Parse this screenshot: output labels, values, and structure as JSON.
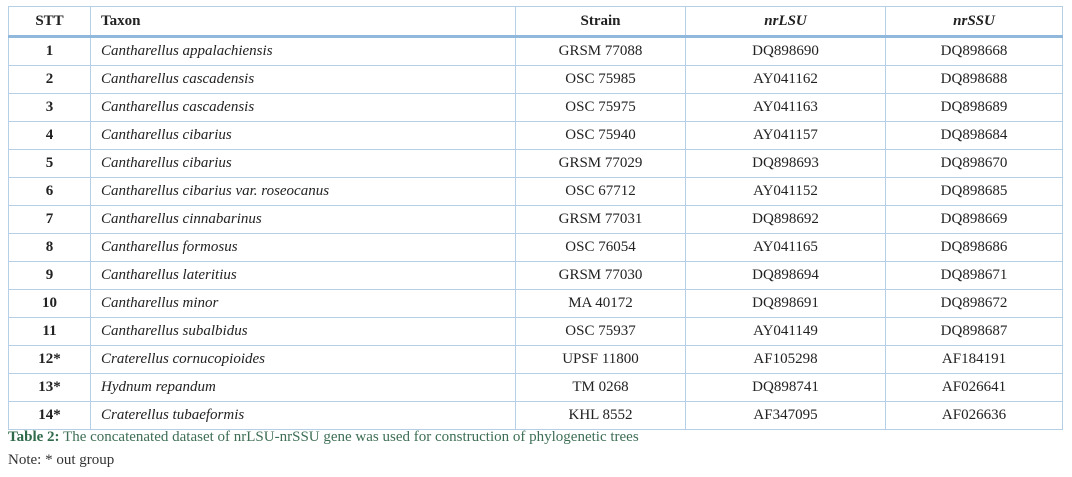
{
  "table": {
    "headers": [
      "STT",
      "Taxon",
      "Strain",
      "nrLSU",
      "nrSSU"
    ],
    "rows": [
      [
        "1",
        "Cantharellus appalachiensis",
        "GRSM 77088",
        "DQ898690",
        "DQ898668"
      ],
      [
        "2",
        "Cantharellus cascadensis",
        "OSC 75985",
        "AY041162",
        "DQ898688"
      ],
      [
        "3",
        "Cantharellus cascadensis",
        "OSC 75975",
        "AY041163",
        "DQ898689"
      ],
      [
        "4",
        "Cantharellus cibarius",
        "OSC 75940",
        "AY041157",
        "DQ898684"
      ],
      [
        "5",
        "Cantharellus cibarius",
        "GRSM 77029",
        "DQ898693",
        "DQ898670"
      ],
      [
        "6",
        "Cantharellus cibarius var. roseocanus",
        "OSC 67712",
        "AY041152",
        "DQ898685"
      ],
      [
        "7",
        "Cantharellus cinnabarinus",
        "GRSM 77031",
        "DQ898692",
        "DQ898669"
      ],
      [
        "8",
        "Cantharellus formosus",
        "OSC 76054",
        "AY041165",
        "DQ898686"
      ],
      [
        "9",
        "Cantharellus lateritius",
        "GRSM 77030",
        "DQ898694",
        "DQ898671"
      ],
      [
        "10",
        "Cantharellus minor",
        "MA 40172",
        "DQ898691",
        "DQ898672"
      ],
      [
        "11",
        "Cantharellus subalbidus",
        "OSC 75937",
        "AY041149",
        "DQ898687"
      ],
      [
        "12*",
        "Craterellus cornucopioides",
        "UPSF 11800",
        "AF105298",
        "AF184191"
      ],
      [
        "13*",
        "Hydnum repandum",
        "TM 0268",
        "DQ898741",
        "AF026641"
      ],
      [
        "14*",
        "Craterellus tubaeformis",
        "KHL 8552",
        "AF347095",
        "AF026636"
      ]
    ]
  },
  "caption": {
    "label": "Table 2:",
    "text": "The concatenated dataset of nrLSU-nrSSU gene was used for construction of phylogenetic trees"
  },
  "note": "Note: * out group"
}
